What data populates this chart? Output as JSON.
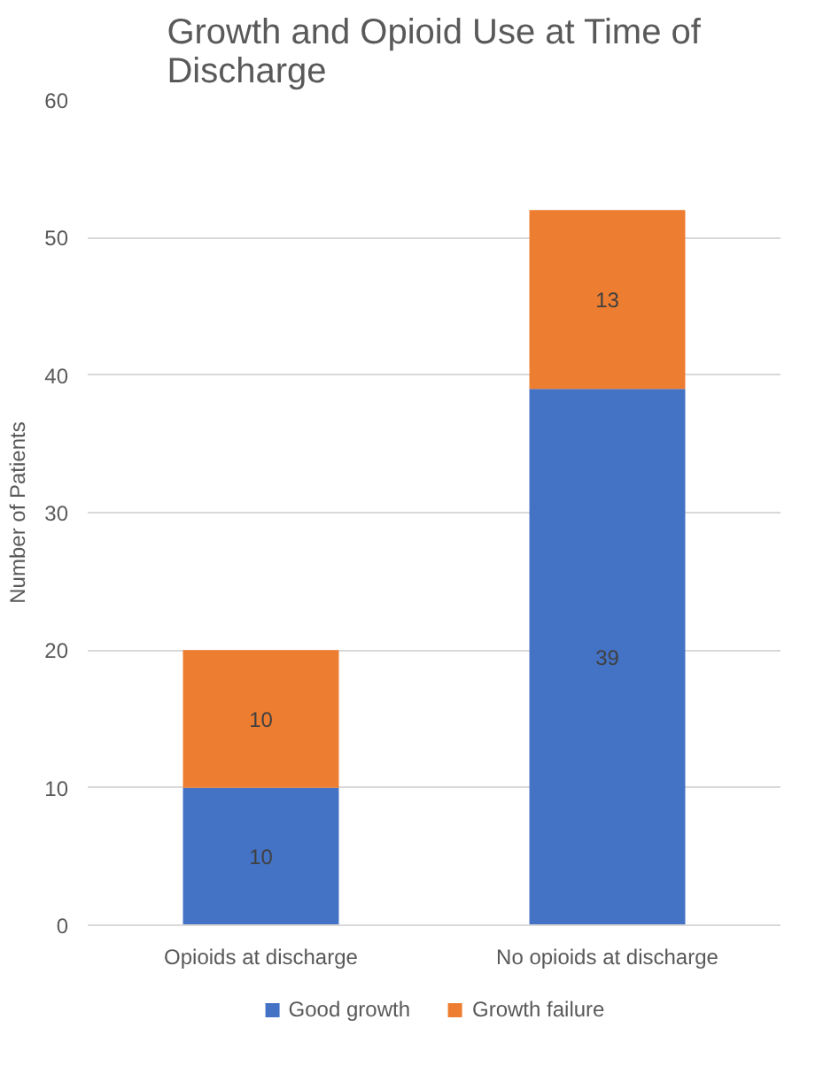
{
  "chart_data": {
    "type": "bar",
    "title": "Growth and Opioid Use at Time of Discharge",
    "ylabel": "Number of Patients",
    "categories": [
      "Opioids at discharge",
      "No opioids at discharge"
    ],
    "series": [
      {
        "name": "Good growth",
        "color": "#4472c4",
        "values": [
          10,
          39
        ]
      },
      {
        "name": "Growth failure",
        "color": "#ed7d31",
        "values": [
          10,
          13
        ]
      }
    ],
    "stacked": true,
    "ylim": [
      0,
      60
    ],
    "yticks": [
      0,
      10,
      20,
      30,
      40,
      50,
      60
    ],
    "grid": "y",
    "legend": "bottom",
    "data_labels": true
  }
}
